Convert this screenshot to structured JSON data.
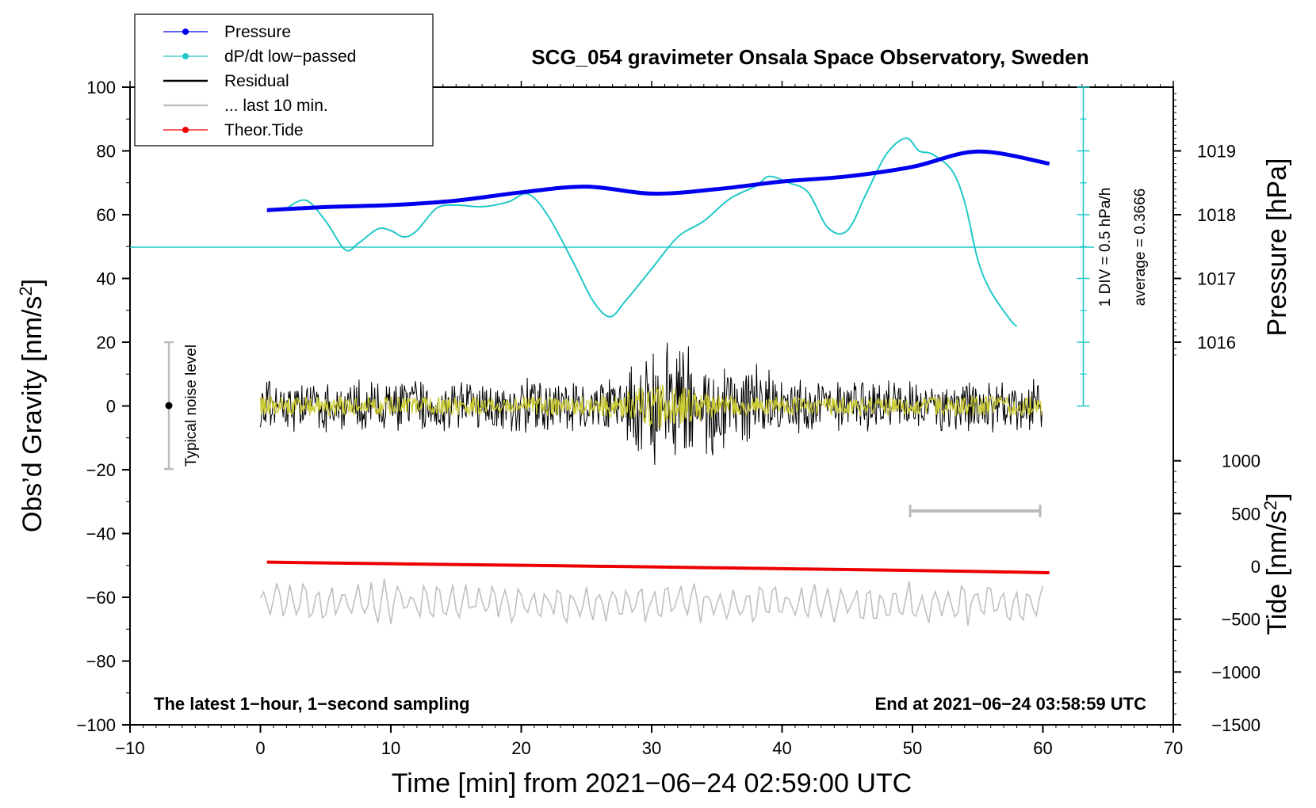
{
  "chart_data": {
    "type": "line",
    "title": "SCG_054 gravimeter Onsala Space Observatory, Sweden",
    "xlabel": "Time [min] from 2021−06−24 02:59:00 UTC",
    "ylabel": "Obs’d Gravity [nm/s",
    "ylabel_sup": "2",
    "ylabel_end": "]",
    "y2label_pressure": "Pressure [hPa]",
    "y2label_tide": "Tide [nm/s",
    "y2label_tide_sup": "2",
    "y2label_tide_end": "]",
    "xlim": [
      -10,
      70
    ],
    "ylim": [
      -100,
      100
    ],
    "x_ticks": [
      "−10",
      "0",
      "10",
      "20",
      "30",
      "40",
      "50",
      "60",
      "70"
    ],
    "y_ticks": [
      "100",
      "80",
      "60",
      "40",
      "20",
      "0",
      "−20",
      "−40",
      "−60",
      "−80",
      "−100"
    ],
    "pressure_ticks": [
      "1019",
      "1018",
      "1017",
      "1016"
    ],
    "tide_ticks": [
      "1000",
      "500",
      "0",
      "−500",
      "−1000",
      "−1500"
    ],
    "legend": [
      {
        "label": "Pressure",
        "color": "#0000ee",
        "marker": true
      },
      {
        "label": "dP/dt low−passed",
        "color": "#22c8c8",
        "marker": true
      },
      {
        "label": "Residual",
        "color": "#000000",
        "marker": false
      },
      {
        "label": "... last 10 min.",
        "color": "#c0c0c0",
        "marker": false
      },
      {
        "label": "Theor.Tide",
        "color": "#ee0000",
        "marker": true
      }
    ],
    "annotations": {
      "bottom_left": "The latest 1−hour, 1−second sampling",
      "bottom_right": "End at 2021−06−24 03:58:59 UTC",
      "noise_label": "Typical noise level",
      "dpdt_scale": "1 DIV = 0.5 hPa/h",
      "dpdt_average": "average = 0.3666"
    },
    "noise_bar": {
      "x": -7,
      "center": 0,
      "range": [
        -20,
        20
      ]
    },
    "last10_bar": {
      "x_range": [
        50,
        60
      ]
    },
    "series": [
      {
        "name": "Pressure",
        "unit": "hPa",
        "color": "#0000ee",
        "x": [
          0.5,
          5,
          10,
          15,
          20,
          25,
          30,
          35,
          40,
          45,
          50,
          55,
          60.5
        ],
        "values": [
          1018.07,
          1018.12,
          1018.15,
          1018.22,
          1018.35,
          1018.44,
          1018.33,
          1018.4,
          1018.52,
          1018.6,
          1018.75,
          1018.99,
          1018.8
        ]
      },
      {
        "name": "dP/dt low-passed",
        "unit": "nm/s2 display",
        "color": "#22c8c8",
        "x": [
          2,
          3.5,
          5,
          6.5,
          7.5,
          9,
          10,
          11,
          12,
          13.5,
          15,
          17,
          19,
          20.5,
          22,
          24,
          25.5,
          26.8,
          28,
          30,
          32,
          34,
          36,
          38,
          39,
          40.5,
          42,
          43.5,
          45,
          46.5,
          48,
          49.5,
          50.5,
          51.5,
          53,
          54,
          55,
          56,
          57.5,
          58
        ],
        "values": [
          62,
          64.5,
          58,
          49,
          51,
          55.5,
          55,
          53,
          55,
          62,
          63,
          62.5,
          64,
          66.5,
          60,
          45,
          33,
          28,
          33,
          43,
          53,
          58,
          65,
          69,
          72,
          70,
          67,
          56,
          55,
          67,
          79,
          84,
          80,
          79,
          74,
          64,
          46,
          36,
          27,
          25
        ]
      },
      {
        "name": "Residual",
        "color": "#000000",
        "envelope": "noise ±10 nm/s2 rising to ±27 nm/s2 near t=32 min"
      },
      {
        "name": "Residual (yellow filtered)",
        "color": "#cccc33",
        "envelope": "±5 nm/s2"
      },
      {
        "name": "... last 10 min.",
        "color": "#c0c0c0",
        "envelope": "around −62 nm/s2, ±6"
      },
      {
        "name": "Theor.Tide",
        "unit": "nm/s2",
        "color": "#ee0000",
        "x": [
          0.5,
          10,
          20,
          30,
          40,
          50,
          60.5
        ],
        "values": [
          40,
          25,
          10,
          -5,
          -22,
          -38,
          -60
        ]
      }
    ]
  }
}
